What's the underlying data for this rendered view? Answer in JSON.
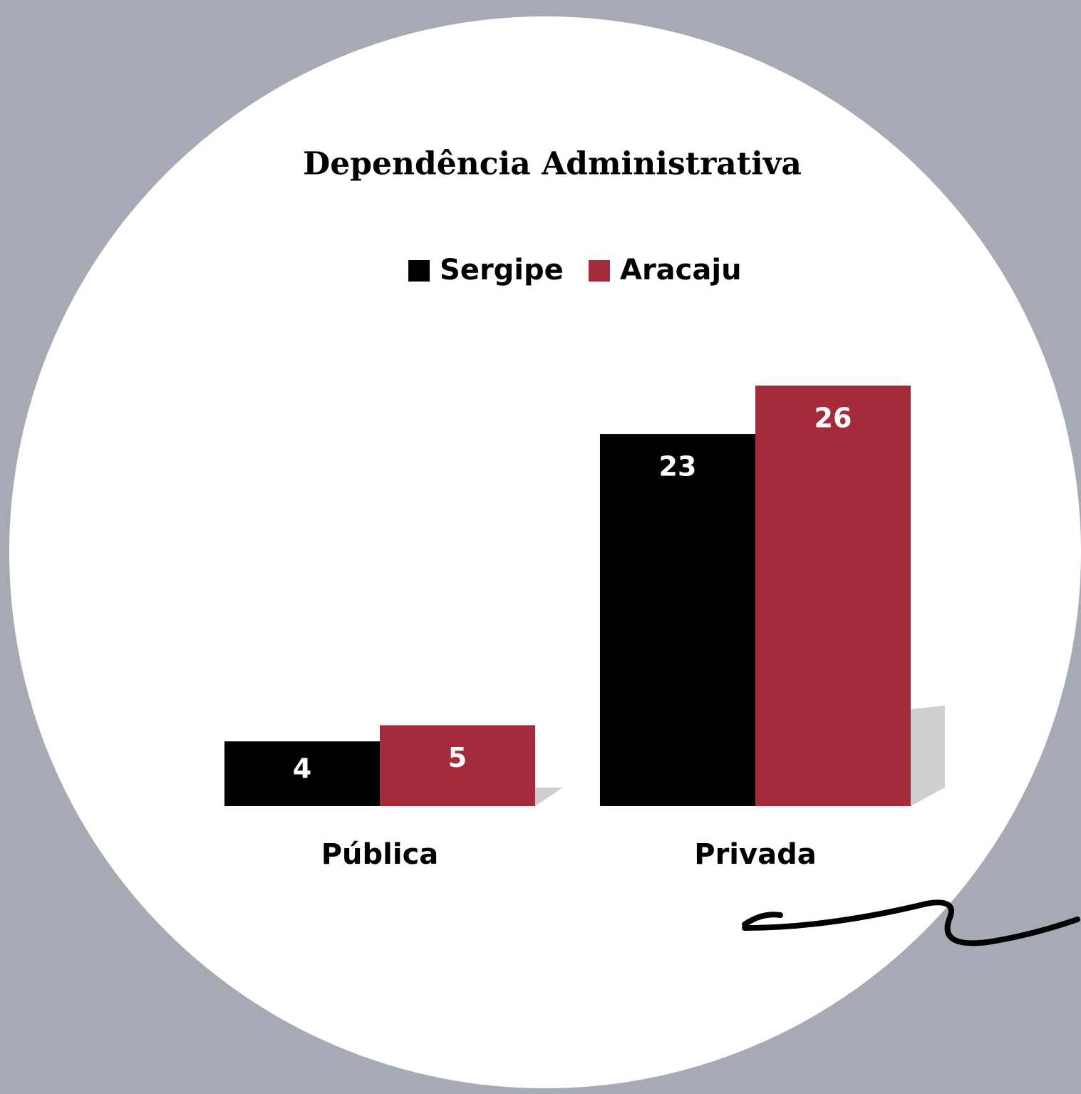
{
  "chart_data": {
    "type": "bar",
    "title": "Dependência Administrativa",
    "categories": [
      "Pública",
      "Privada"
    ],
    "series": [
      {
        "name": "Sergipe",
        "color": "#000000",
        "values": [
          4,
          23
        ]
      },
      {
        "name": "Aracaju",
        "color": "#a52a3a",
        "values": [
          5,
          26
        ]
      }
    ],
    "legend": "top"
  }
}
